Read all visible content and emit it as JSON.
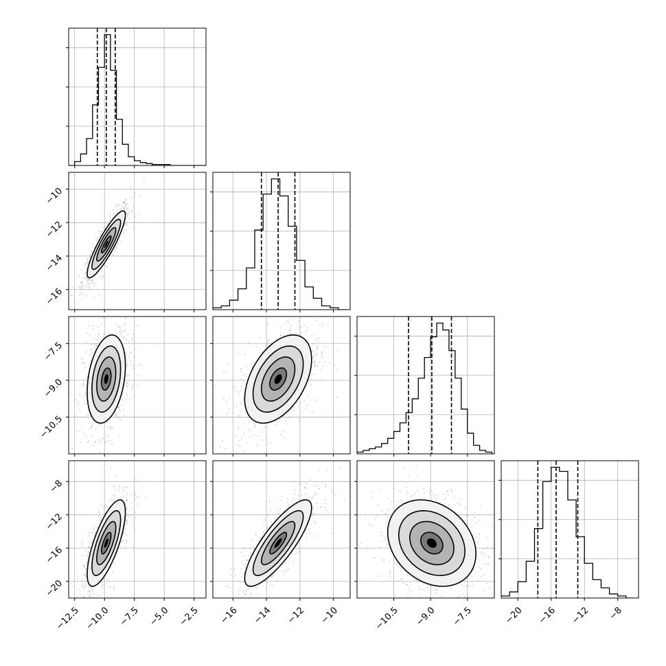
{
  "chart_data": {
    "type": "corner",
    "params": 4,
    "grid": true,
    "quantile_lines_dashed": true,
    "contour_color": "#000000",
    "scatter_color": "#808080",
    "histograms": [
      {
        "range": [
          -13.0,
          -1.5
        ],
        "step": true,
        "bin_edges": [
          -13.0,
          -12.5,
          -12.0,
          -11.5,
          -11.0,
          -10.5,
          -10.0,
          -9.5,
          -9.0,
          -8.5,
          -8.0,
          -7.5,
          -7.0,
          -6.5,
          -6.0,
          -5.5,
          -5.0,
          -4.5,
          -4.0,
          -3.5,
          -3.0,
          -2.5,
          -2.0,
          -1.5
        ],
        "counts": [
          0,
          4,
          12,
          28,
          63,
          102,
          136,
          99,
          48,
          22,
          9,
          5,
          3,
          2,
          1,
          1,
          1,
          0,
          0,
          0,
          0,
          0,
          0
        ],
        "quantiles": [
          -10.6,
          -9.85,
          -9.1
        ]
      },
      {
        "range": [
          -17.2,
          -9.0
        ],
        "step": true,
        "bin_edges": [
          -17.2,
          -16.7,
          -16.2,
          -15.7,
          -15.2,
          -14.7,
          -14.2,
          -13.7,
          -13.2,
          -12.7,
          -12.2,
          -11.7,
          -11.2,
          -10.7,
          -10.2,
          -9.7,
          -9.2
        ],
        "counts": [
          1,
          2,
          5,
          11,
          22,
          42,
          61,
          69,
          60,
          44,
          26,
          12,
          6,
          2,
          1,
          0
        ],
        "quantiles": [
          -14.3,
          -13.3,
          -12.3
        ]
      },
      {
        "range": [
          -12.0,
          -6.4
        ],
        "step": true,
        "bin_edges": [
          -12.0,
          -11.75,
          -11.5,
          -11.25,
          -11.0,
          -10.75,
          -10.5,
          -10.25,
          -10.0,
          -9.75,
          -9.5,
          -9.25,
          -9.0,
          -8.75,
          -8.5,
          -8.25,
          -8.0,
          -7.75,
          -7.5,
          -7.25,
          -7.0,
          -6.75,
          -6.5
        ],
        "counts": [
          1,
          2,
          3,
          4,
          6,
          9,
          13,
          18,
          24,
          32,
          44,
          56,
          68,
          76,
          72,
          60,
          44,
          26,
          12,
          5,
          2,
          1
        ],
        "quantiles": [
          -9.9,
          -8.95,
          -8.15
        ]
      },
      {
        "range": [
          -22.0,
          -5.5
        ],
        "step": true,
        "bin_edges": [
          -22.0,
          -21.0,
          -20.0,
          -19.0,
          -18.0,
          -17.0,
          -16.0,
          -15.0,
          -14.0,
          -13.0,
          -12.0,
          -11.0,
          -10.0,
          -9.0,
          -8.0,
          -7.0,
          -6.0
        ],
        "counts": [
          1,
          3,
          8,
          18,
          34,
          57,
          64,
          62,
          48,
          30,
          17,
          9,
          5,
          2,
          1,
          0
        ],
        "quantiles": [
          -17.6,
          -15.4,
          -12.8
        ]
      }
    ],
    "pairs": [
      {
        "row": 1,
        "col": 0,
        "x_range": [
          -13.0,
          -1.5
        ],
        "y_range": [
          -17.2,
          -9.0
        ],
        "mean": [
          -9.85,
          -13.3
        ],
        "sd": [
          0.8,
          1.0
        ],
        "corr": 0.88
      },
      {
        "row": 2,
        "col": 0,
        "x_range": [
          -13.0,
          -1.5
        ],
        "y_range": [
          -12.0,
          -6.4
        ],
        "mean": [
          -9.85,
          -8.95
        ],
        "sd": [
          0.8,
          0.9
        ],
        "corr": 0.3
      },
      {
        "row": 2,
        "col": 1,
        "x_range": [
          -17.2,
          -9.0
        ],
        "y_range": [
          -12.0,
          -6.4
        ],
        "mean": [
          -13.3,
          -8.95
        ],
        "sd": [
          1.0,
          0.9
        ],
        "corr": 0.45
      },
      {
        "row": 3,
        "col": 0,
        "x_range": [
          -13.0,
          -1.5
        ],
        "y_range": [
          -22.0,
          -5.5
        ],
        "mean": [
          -9.85,
          -15.4
        ],
        "sd": [
          0.8,
          2.6
        ],
        "corr": 0.72
      },
      {
        "row": 3,
        "col": 1,
        "x_range": [
          -17.2,
          -9.0
        ],
        "y_range": [
          -22.0,
          -5.5
        ],
        "mean": [
          -13.3,
          -15.4
        ],
        "sd": [
          1.0,
          2.6
        ],
        "corr": 0.82
      },
      {
        "row": 3,
        "col": 2,
        "x_range": [
          -12.0,
          -6.4
        ],
        "y_range": [
          -22.0,
          -5.5
        ],
        "mean": [
          -8.95,
          -15.4
        ],
        "sd": [
          0.9,
          2.6
        ],
        "corr": -0.25
      }
    ],
    "x_ticks": [
      [
        "−12.5",
        "−10.0",
        "−7.5",
        "−5.0",
        "−2.5"
      ],
      [
        "−16",
        "−14",
        "−12",
        "−10"
      ],
      [
        "−10.5",
        "−9.0",
        "−7.5"
      ],
      [
        "−20",
        "−16",
        "−12",
        "−8"
      ]
    ],
    "x_tick_values": [
      [
        -12.5,
        -10.0,
        -7.5,
        -5.0,
        -2.5
      ],
      [
        -16,
        -14,
        -12,
        -10
      ],
      [
        -10.5,
        -9.0,
        -7.5
      ],
      [
        -20,
        -16,
        -12,
        -8
      ]
    ],
    "y_ticks": [
      null,
      [
        "−10",
        "−12",
        "−14",
        "−16"
      ],
      [
        "−7.5",
        "−9.0",
        "−10.5"
      ],
      [
        "−8",
        "−12",
        "−16",
        "−20"
      ]
    ],
    "y_tick_values": [
      null,
      [
        -10,
        -12,
        -14,
        -16
      ],
      [
        -7.5,
        -9.0,
        -10.5
      ],
      [
        -8,
        -12,
        -16,
        -20
      ]
    ]
  }
}
